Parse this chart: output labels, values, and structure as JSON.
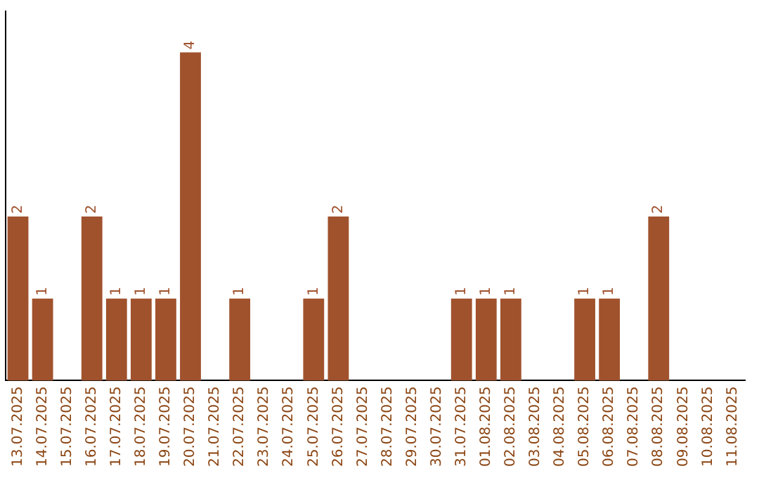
{
  "chart_data": {
    "type": "bar",
    "categories": [
      "13.07.2025",
      "14.07.2025",
      "15.07.2025",
      "16.07.2025",
      "17.07.2025",
      "18.07.2025",
      "19.07.2025",
      "20.07.2025",
      "21.07.2025",
      "22.07.2025",
      "23.07.2025",
      "24.07.2025",
      "25.07.2025",
      "26.07.2025",
      "27.07.2025",
      "28.07.2025",
      "29.07.2025",
      "30.07.2025",
      "31.07.2025",
      "01.08.2025",
      "02.08.2025",
      "03.08.2025",
      "04.08.2025",
      "05.08.2025",
      "06.08.2025",
      "07.08.2025",
      "08.08.2025",
      "09.08.2025",
      "10.08.2025",
      "11.08.2025"
    ],
    "values": [
      2,
      1,
      0,
      2,
      1,
      1,
      1,
      4,
      0,
      1,
      0,
      0,
      1,
      2,
      0,
      0,
      0,
      0,
      1,
      1,
      1,
      0,
      0,
      1,
      1,
      0,
      2,
      0,
      0,
      0
    ],
    "value_labels": [
      "2",
      "1",
      null,
      "2",
      "1",
      "1",
      "1",
      "4",
      null,
      "1",
      null,
      null,
      "1",
      "2",
      null,
      null,
      null,
      null,
      "1",
      "1",
      "1",
      null,
      null,
      "1",
      "1",
      null,
      "2",
      null,
      null,
      null
    ],
    "color": "#a0522d",
    "grid": false,
    "legend": false,
    "tick_labels": "x"
  }
}
